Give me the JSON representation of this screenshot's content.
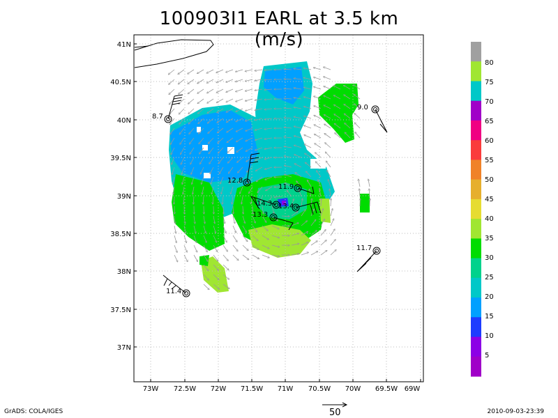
{
  "title": "100903I1  EARL  at 3.5 km  (m/s)",
  "footer": {
    "left": "GrADS: COLA/IGES",
    "right": "2010-09-03-23:39",
    "reference_vector_label": "50"
  },
  "axes": {
    "lon_labels": [
      "73W",
      "72.5W",
      "72W",
      "71.5W",
      "71W",
      "70.5W",
      "70W",
      "69.5W",
      "69W"
    ],
    "lat_labels": [
      "41N",
      "40.5N",
      "40N",
      "39.5N",
      "39N",
      "38.5N",
      "38N",
      "37.5N",
      "37N"
    ]
  },
  "colorbar": {
    "labels": [
      "80",
      "75",
      "70",
      "65",
      "60",
      "55",
      "50",
      "45",
      "40",
      "35",
      "30",
      "25",
      "20",
      "15",
      "10",
      "5"
    ],
    "colors": [
      "#a0a0a0",
      "#a0e632",
      "#00c8c8",
      "#a000c8",
      "#f00082",
      "#fa3c3c",
      "#f08228",
      "#e6af2d",
      "#e6dc32",
      "#a0e632",
      "#00dc00",
      "#00d28c",
      "#00c8c8",
      "#00a0ff",
      "#1e3cff",
      "#8c00e6",
      "#a000c8"
    ]
  },
  "stations": [
    {
      "label": "8.7"
    },
    {
      "label": "9.0"
    },
    {
      "label": "12.8"
    },
    {
      "label": "11.9"
    },
    {
      "label": "14.3"
    },
    {
      "label": "13.4"
    },
    {
      "label": "13.3"
    },
    {
      "label": "11.7"
    },
    {
      "label": "11.4"
    }
  ]
}
